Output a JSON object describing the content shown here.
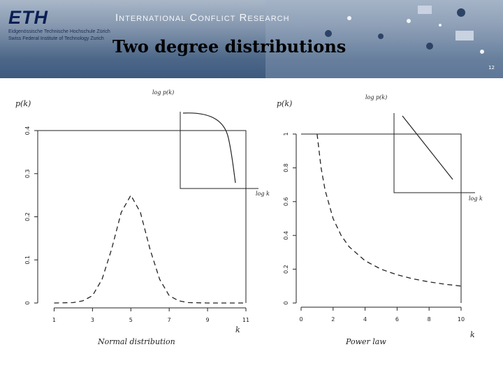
{
  "header": {
    "logo": "ETH",
    "institution_line1": "Eidgenössische Technische Hochschule Zürich",
    "institution_line2": "Swiss Federal Institute of Technology Zurich",
    "program": "International Conflict Research",
    "slide_title": "Two degree distributions",
    "page_number": "12"
  },
  "left_panel": {
    "y_label": "p(k)",
    "x_label": "k",
    "caption": "Normal distribution",
    "inset_y_label": "log p(k)",
    "inset_x_label": "log k"
  },
  "right_panel": {
    "y_label": "p(k)",
    "x_label": "k",
    "caption": "Power law",
    "inset_y_label": "log p(k)",
    "inset_x_label": "log k"
  },
  "chart_data": [
    {
      "type": "line",
      "title": "Normal distribution",
      "xlabel": "k",
      "ylabel": "p(k)",
      "xlim": [
        0,
        11
      ],
      "ylim": [
        0,
        0.4
      ],
      "x_ticks": [
        1,
        3,
        5,
        7,
        9,
        11
      ],
      "x_tick_labels": [
        "1",
        "3",
        "5",
        "7",
        "9",
        "11"
      ],
      "y_ticks": [
        0,
        0.1,
        0.2,
        0.3,
        0.4
      ],
      "y_tick_labels": [
        "0",
        "0.1",
        "0.2",
        "0.3",
        "0.4"
      ],
      "line_style": "dashed",
      "series": [
        {
          "x": [
            1,
            2,
            2.5,
            3,
            3.5,
            4,
            4.5,
            5,
            5.5,
            6,
            6.5,
            7,
            7.5,
            8,
            9,
            10,
            11
          ],
          "y": [
            0,
            0.001,
            0.005,
            0.017,
            0.055,
            0.125,
            0.21,
            0.25,
            0.21,
            0.125,
            0.055,
            0.017,
            0.005,
            0.001,
            0,
            0,
            0
          ]
        }
      ],
      "inset": {
        "xlabel": "log k",
        "ylabel": "log p(k)",
        "shape": "concave-downward"
      }
    },
    {
      "type": "line",
      "title": "Power law",
      "xlabel": "k",
      "ylabel": "p(k)",
      "xlim": [
        0,
        10
      ],
      "ylim": [
        0,
        1
      ],
      "x_ticks": [
        0,
        2,
        4,
        6,
        8,
        10
      ],
      "x_tick_labels": [
        "0",
        "2",
        "4",
        "6",
        "8",
        "10"
      ],
      "y_ticks": [
        0,
        0.2,
        0.4,
        0.6,
        0.8,
        1
      ],
      "y_tick_labels": [
        "0",
        "0.2",
        "0.4",
        "0.6",
        "0.8",
        "1"
      ],
      "line_style": "dashed",
      "series": [
        {
          "x": [
            1,
            1.25,
            1.5,
            2,
            2.5,
            3,
            4,
            5,
            6,
            7,
            8,
            9,
            10
          ],
          "y": [
            1,
            0.8,
            0.667,
            0.5,
            0.4,
            0.333,
            0.25,
            0.2,
            0.167,
            0.143,
            0.125,
            0.111,
            0.1
          ]
        }
      ],
      "inset": {
        "xlabel": "log k",
        "ylabel": "log p(k)",
        "shape": "straight-line"
      }
    }
  ],
  "colors": {
    "banner": "#4c6788",
    "ink": "#222222",
    "title": "#000000"
  }
}
